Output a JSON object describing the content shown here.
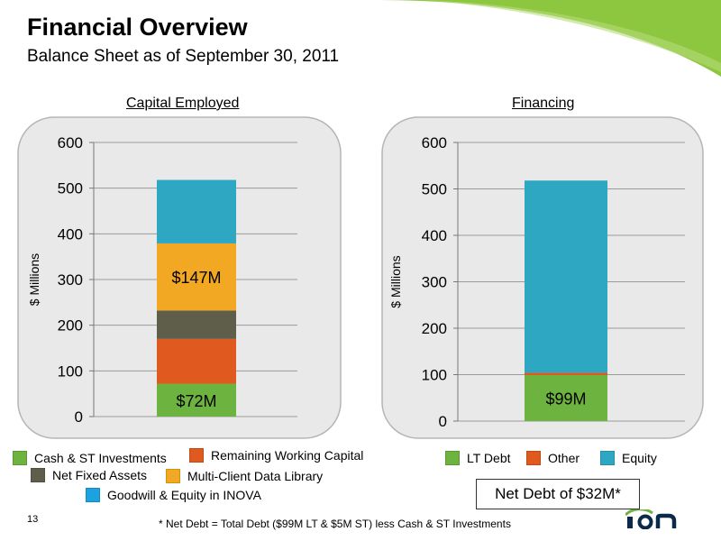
{
  "header": {
    "title": "Financial Overview",
    "subtitle": "Balance Sheet as of September 30, 2011"
  },
  "chart_data": [
    {
      "type": "bar",
      "stacked": true,
      "title": "Capital Employed",
      "ylabel": "$ Millions",
      "ylim": [
        0,
        600
      ],
      "yticks": [
        "0",
        "100",
        "200",
        "300",
        "400",
        "500",
        "600"
      ],
      "grid": true,
      "series": [
        {
          "name": "Cash & ST Investments",
          "value": 72,
          "color": "#6db33f",
          "label": "$72M"
        },
        {
          "name": "Remaining Working Capital",
          "value": 98,
          "color": "#e05a20"
        },
        {
          "name": "Net Fixed Assets",
          "value": 62,
          "color": "#5e5e4a"
        },
        {
          "name": "Multi-Client Data Library",
          "value": 147,
          "color": "#f2a823",
          "label": "$147M"
        },
        {
          "name": "Goodwill & Equity in INOVA",
          "value": 139,
          "color": "#2ea8c2"
        }
      ]
    },
    {
      "type": "bar",
      "stacked": true,
      "title": "Financing",
      "ylabel": "$ Millions",
      "ylim": [
        0,
        600
      ],
      "yticks": [
        "0",
        "100",
        "200",
        "300",
        "400",
        "500",
        "600"
      ],
      "grid": true,
      "series": [
        {
          "name": "LT Debt",
          "value": 99,
          "color": "#6db33f",
          "label": "$99M"
        },
        {
          "name": "Other",
          "value": 5,
          "color": "#e05a20"
        },
        {
          "name": "Equity",
          "value": 414,
          "color": "#2ea8c2"
        }
      ]
    }
  ],
  "net_debt_label": "Net Debt of $32M*",
  "footnote": "* Net Debt = Total Debt ($99M LT & $5M ST) less Cash & ST Investments",
  "page_number": "13",
  "logo_text": "ION",
  "colors": {
    "swoosh": "#8dc63f",
    "panel_bg": "#e9e9e9",
    "panel_border": "#b5b5b5"
  }
}
